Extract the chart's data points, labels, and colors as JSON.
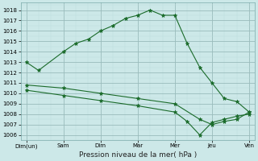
{
  "xlabel": "Pression niveau de la mer( hPa )",
  "bg_color": "#cce8e8",
  "grid_color_major": "#99bbbb",
  "grid_color_minor": "#bbdddd",
  "line_color": "#1a6b2a",
  "ylim": [
    1005.5,
    1018.7
  ],
  "yticks": [
    1006,
    1007,
    1008,
    1009,
    1010,
    1011,
    1012,
    1013,
    1014,
    1015,
    1016,
    1017,
    1018
  ],
  "x_labels": [
    "Dim(un)",
    "Sam",
    "Dim",
    "Mar",
    "Mer",
    "Jeu",
    "Ven"
  ],
  "line1_x": [
    0,
    0.33,
    1,
    1.33,
    1.67,
    2,
    2.33,
    2.67,
    3,
    3.33,
    3.67,
    4,
    4.33,
    4.67,
    5,
    5.33,
    5.67,
    6
  ],
  "line1_y": [
    1013.0,
    1012.2,
    1014.0,
    1014.8,
    1015.2,
    1016.0,
    1016.5,
    1017.2,
    1017.5,
    1018.0,
    1017.5,
    1017.5,
    1014.8,
    1012.5,
    1011.0,
    1009.5,
    1009.2,
    1008.2
  ],
  "line2_x": [
    0,
    1,
    2,
    3,
    4,
    4.67,
    5,
    5.33,
    5.67,
    6
  ],
  "line2_y": [
    1010.8,
    1010.5,
    1010.0,
    1009.5,
    1009.0,
    1007.5,
    1007.0,
    1007.3,
    1007.5,
    1008.2
  ],
  "line3_x": [
    0,
    1,
    2,
    3,
    4,
    4.33,
    4.67,
    5,
    5.33,
    5.67,
    6
  ],
  "line3_y": [
    1010.3,
    1009.8,
    1009.3,
    1008.8,
    1008.2,
    1007.3,
    1006.0,
    1007.2,
    1007.5,
    1007.8,
    1008.0
  ]
}
